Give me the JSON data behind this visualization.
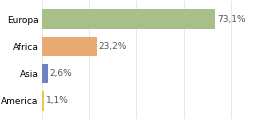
{
  "categories": [
    "America",
    "Asia",
    "Africa",
    "Europa"
  ],
  "values": [
    1.1,
    2.6,
    23.2,
    73.1
  ],
  "bar_colors": [
    "#f0c840",
    "#6b82c4",
    "#e8aa72",
    "#a8bf8a"
  ],
  "labels": [
    "1,1%",
    "2,6%",
    "23,2%",
    "73,1%"
  ],
  "xlim": [
    0,
    100
  ],
  "background_color": "#ffffff",
  "bar_height": 0.7,
  "label_fontsize": 6.5,
  "tick_fontsize": 6.5,
  "grid_color": "#dddddd",
  "label_color": "#555555"
}
